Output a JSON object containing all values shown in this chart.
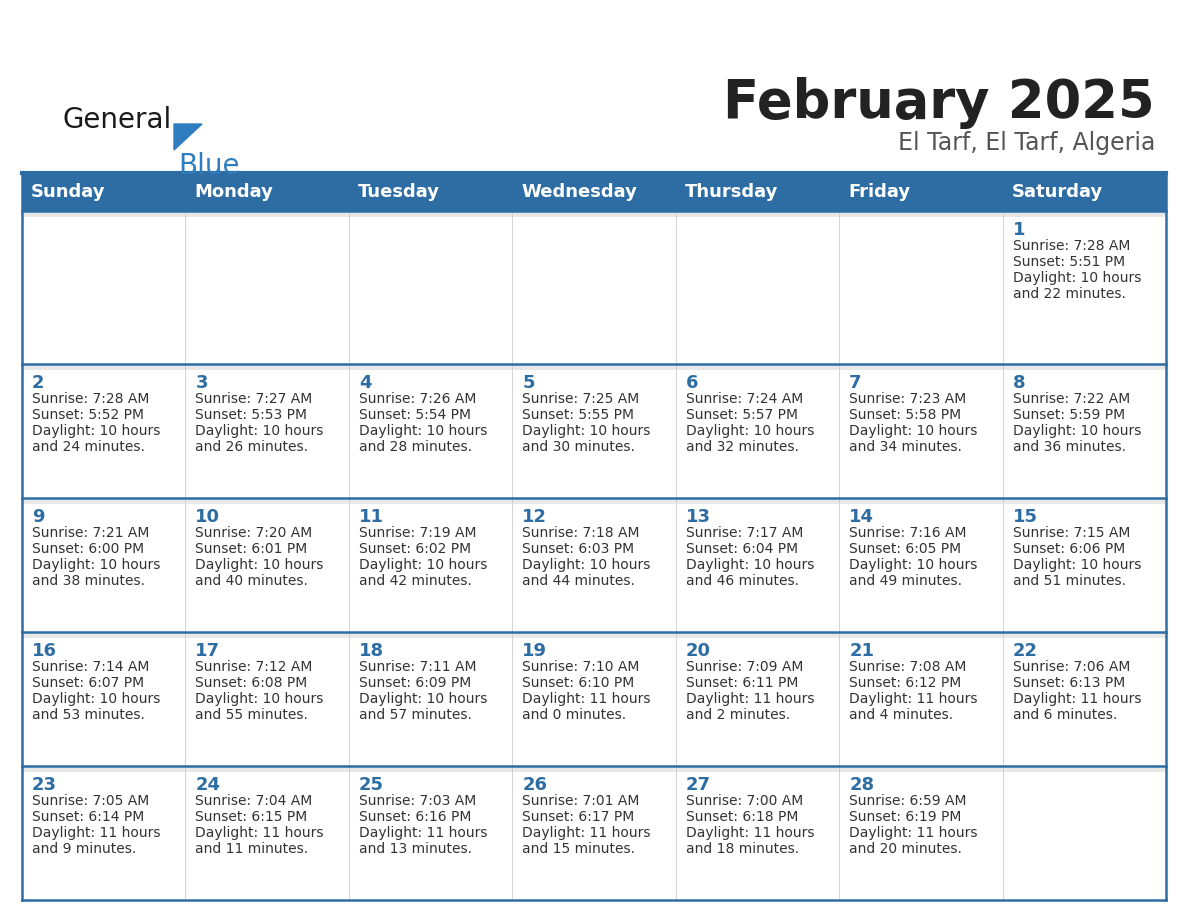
{
  "title": "February 2025",
  "subtitle": "El Tarf, El Tarf, Algeria",
  "header_bg": "#2E6DA4",
  "header_text": "#FFFFFF",
  "cell_bg": "#FFFFFF",
  "row_top_strip_bg": "#EBEBEB",
  "border_color": "#2E6DA4",
  "day_headers": [
    "Sunday",
    "Monday",
    "Tuesday",
    "Wednesday",
    "Thursday",
    "Friday",
    "Saturday"
  ],
  "title_color": "#222222",
  "subtitle_color": "#555555",
  "day_num_color": "#2E6DA4",
  "info_color": "#333333",
  "calendar": [
    [
      null,
      null,
      null,
      null,
      null,
      null,
      {
        "day": 1,
        "sunrise": "7:28 AM",
        "sunset": "5:51 PM",
        "daylight_h": "10 hours",
        "daylight_m": "and 22 minutes."
      }
    ],
    [
      {
        "day": 2,
        "sunrise": "7:28 AM",
        "sunset": "5:52 PM",
        "daylight_h": "10 hours",
        "daylight_m": "and 24 minutes."
      },
      {
        "day": 3,
        "sunrise": "7:27 AM",
        "sunset": "5:53 PM",
        "daylight_h": "10 hours",
        "daylight_m": "and 26 minutes."
      },
      {
        "day": 4,
        "sunrise": "7:26 AM",
        "sunset": "5:54 PM",
        "daylight_h": "10 hours",
        "daylight_m": "and 28 minutes."
      },
      {
        "day": 5,
        "sunrise": "7:25 AM",
        "sunset": "5:55 PM",
        "daylight_h": "10 hours",
        "daylight_m": "and 30 minutes."
      },
      {
        "day": 6,
        "sunrise": "7:24 AM",
        "sunset": "5:57 PM",
        "daylight_h": "10 hours",
        "daylight_m": "and 32 minutes."
      },
      {
        "day": 7,
        "sunrise": "7:23 AM",
        "sunset": "5:58 PM",
        "daylight_h": "10 hours",
        "daylight_m": "and 34 minutes."
      },
      {
        "day": 8,
        "sunrise": "7:22 AM",
        "sunset": "5:59 PM",
        "daylight_h": "10 hours",
        "daylight_m": "and 36 minutes."
      }
    ],
    [
      {
        "day": 9,
        "sunrise": "7:21 AM",
        "sunset": "6:00 PM",
        "daylight_h": "10 hours",
        "daylight_m": "and 38 minutes."
      },
      {
        "day": 10,
        "sunrise": "7:20 AM",
        "sunset": "6:01 PM",
        "daylight_h": "10 hours",
        "daylight_m": "and 40 minutes."
      },
      {
        "day": 11,
        "sunrise": "7:19 AM",
        "sunset": "6:02 PM",
        "daylight_h": "10 hours",
        "daylight_m": "and 42 minutes."
      },
      {
        "day": 12,
        "sunrise": "7:18 AM",
        "sunset": "6:03 PM",
        "daylight_h": "10 hours",
        "daylight_m": "and 44 minutes."
      },
      {
        "day": 13,
        "sunrise": "7:17 AM",
        "sunset": "6:04 PM",
        "daylight_h": "10 hours",
        "daylight_m": "and 46 minutes."
      },
      {
        "day": 14,
        "sunrise": "7:16 AM",
        "sunset": "6:05 PM",
        "daylight_h": "10 hours",
        "daylight_m": "and 49 minutes."
      },
      {
        "day": 15,
        "sunrise": "7:15 AM",
        "sunset": "6:06 PM",
        "daylight_h": "10 hours",
        "daylight_m": "and 51 minutes."
      }
    ],
    [
      {
        "day": 16,
        "sunrise": "7:14 AM",
        "sunset": "6:07 PM",
        "daylight_h": "10 hours",
        "daylight_m": "and 53 minutes."
      },
      {
        "day": 17,
        "sunrise": "7:12 AM",
        "sunset": "6:08 PM",
        "daylight_h": "10 hours",
        "daylight_m": "and 55 minutes."
      },
      {
        "day": 18,
        "sunrise": "7:11 AM",
        "sunset": "6:09 PM",
        "daylight_h": "10 hours",
        "daylight_m": "and 57 minutes."
      },
      {
        "day": 19,
        "sunrise": "7:10 AM",
        "sunset": "6:10 PM",
        "daylight_h": "11 hours",
        "daylight_m": "and 0 minutes."
      },
      {
        "day": 20,
        "sunrise": "7:09 AM",
        "sunset": "6:11 PM",
        "daylight_h": "11 hours",
        "daylight_m": "and 2 minutes."
      },
      {
        "day": 21,
        "sunrise": "7:08 AM",
        "sunset": "6:12 PM",
        "daylight_h": "11 hours",
        "daylight_m": "and 4 minutes."
      },
      {
        "day": 22,
        "sunrise": "7:06 AM",
        "sunset": "6:13 PM",
        "daylight_h": "11 hours",
        "daylight_m": "and 6 minutes."
      }
    ],
    [
      {
        "day": 23,
        "sunrise": "7:05 AM",
        "sunset": "6:14 PM",
        "daylight_h": "11 hours",
        "daylight_m": "and 9 minutes."
      },
      {
        "day": 24,
        "sunrise": "7:04 AM",
        "sunset": "6:15 PM",
        "daylight_h": "11 hours",
        "daylight_m": "and 11 minutes."
      },
      {
        "day": 25,
        "sunrise": "7:03 AM",
        "sunset": "6:16 PM",
        "daylight_h": "11 hours",
        "daylight_m": "and 13 minutes."
      },
      {
        "day": 26,
        "sunrise": "7:01 AM",
        "sunset": "6:17 PM",
        "daylight_h": "11 hours",
        "daylight_m": "and 15 minutes."
      },
      {
        "day": 27,
        "sunrise": "7:00 AM",
        "sunset": "6:18 PM",
        "daylight_h": "11 hours",
        "daylight_m": "and 18 minutes."
      },
      {
        "day": 28,
        "sunrise": "6:59 AM",
        "sunset": "6:19 PM",
        "daylight_h": "11 hours",
        "daylight_m": "and 20 minutes."
      },
      null
    ]
  ]
}
